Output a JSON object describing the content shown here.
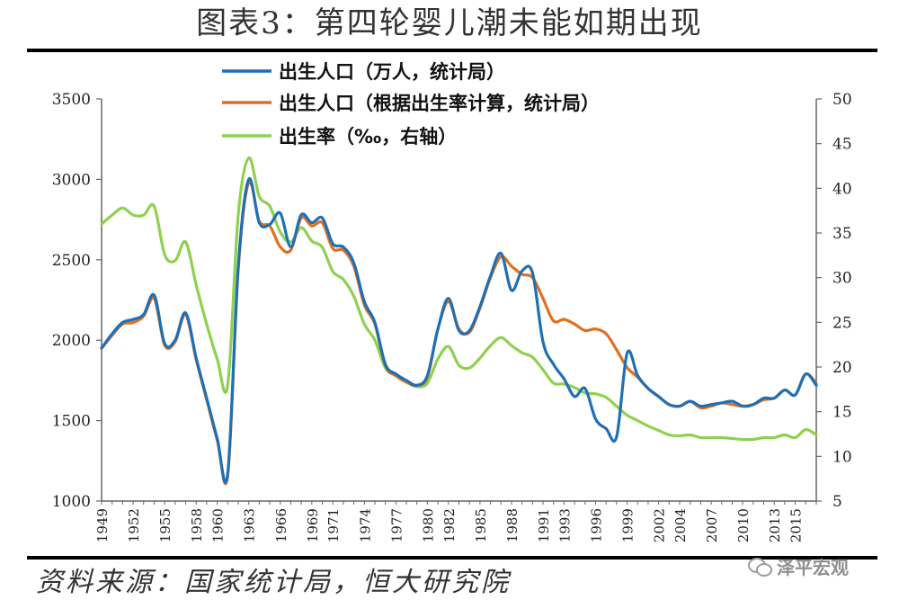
{
  "page": {
    "title": "图表3：第四轮婴儿潮未能如期出现",
    "source": "资料来源：国家统计局，恒大研究院",
    "watermark": "泽平宏观",
    "watermark_icon": "wechat-icon"
  },
  "chart_data": {
    "type": "line",
    "title": "",
    "legend_placement": "top",
    "grid": false,
    "y_left": {
      "min": 1000,
      "max": 3500,
      "ticks": [
        1000,
        1500,
        2000,
        2500,
        3000,
        3500
      ]
    },
    "y_right": {
      "min": 5,
      "max": 50,
      "ticks": [
        5,
        10,
        15,
        20,
        25,
        30,
        35,
        40,
        45,
        50
      ]
    },
    "x_range": [
      1949,
      2017
    ],
    "x_tick_labels": [
      1949,
      1952,
      1955,
      1958,
      1960,
      1963,
      1966,
      1969,
      1971,
      1974,
      1977,
      1980,
      1982,
      1985,
      1988,
      1991,
      1993,
      1996,
      1999,
      2002,
      2004,
      2007,
      2010,
      2013,
      2015
    ],
    "series": [
      {
        "name": "出生人口（万人，统计局）",
        "axis": "left",
        "color": "#1f6fb5",
        "points": [
          [
            1949,
            1950
          ],
          [
            1950,
            2040
          ],
          [
            1951,
            2110
          ],
          [
            1952,
            2130
          ],
          [
            1953,
            2160
          ],
          [
            1954,
            2280
          ],
          [
            1955,
            1980
          ],
          [
            1956,
            2000
          ],
          [
            1957,
            2170
          ],
          [
            1958,
            1890
          ],
          [
            1959,
            1640
          ],
          [
            1960,
            1390
          ],
          [
            1961,
            1170
          ],
          [
            1962,
            2460
          ],
          [
            1963,
            3000
          ],
          [
            1964,
            2730
          ],
          [
            1965,
            2720
          ],
          [
            1966,
            2790
          ],
          [
            1967,
            2580
          ],
          [
            1968,
            2780
          ],
          [
            1969,
            2730
          ],
          [
            1970,
            2760
          ],
          [
            1971,
            2600
          ],
          [
            1972,
            2580
          ],
          [
            1973,
            2480
          ],
          [
            1974,
            2240
          ],
          [
            1975,
            2110
          ],
          [
            1976,
            1850
          ],
          [
            1977,
            1790
          ],
          [
            1978,
            1750
          ],
          [
            1979,
            1720
          ],
          [
            1980,
            1780
          ],
          [
            1981,
            2070
          ],
          [
            1982,
            2260
          ],
          [
            1983,
            2060
          ],
          [
            1984,
            2060
          ],
          [
            1985,
            2210
          ],
          [
            1986,
            2400
          ],
          [
            1987,
            2540
          ],
          [
            1988,
            2310
          ],
          [
            1989,
            2430
          ],
          [
            1990,
            2420
          ],
          [
            1991,
            1990
          ],
          [
            1992,
            1850
          ],
          [
            1993,
            1760
          ],
          [
            1994,
            1650
          ],
          [
            1995,
            1700
          ],
          [
            1996,
            1510
          ],
          [
            1997,
            1450
          ],
          [
            1998,
            1400
          ],
          [
            1999,
            1920
          ],
          [
            2000,
            1780
          ],
          [
            2001,
            1700
          ],
          [
            2002,
            1650
          ],
          [
            2003,
            1600
          ],
          [
            2004,
            1590
          ],
          [
            2005,
            1620
          ],
          [
            2006,
            1590
          ],
          [
            2007,
            1600
          ],
          [
            2008,
            1610
          ],
          [
            2009,
            1620
          ],
          [
            2010,
            1590
          ],
          [
            2011,
            1600
          ],
          [
            2012,
            1640
          ],
          [
            2013,
            1640
          ],
          [
            2014,
            1690
          ],
          [
            2015,
            1660
          ],
          [
            2016,
            1790
          ],
          [
            2017,
            1720
          ]
        ]
      },
      {
        "name": "出生人口（根据出生率计算，统计局）",
        "axis": "left",
        "color": "#e07020",
        "points": [
          [
            1949,
            1950
          ],
          [
            1950,
            2030
          ],
          [
            1951,
            2100
          ],
          [
            1952,
            2110
          ],
          [
            1953,
            2150
          ],
          [
            1954,
            2260
          ],
          [
            1955,
            1970
          ],
          [
            1956,
            1990
          ],
          [
            1957,
            2160
          ],
          [
            1958,
            1880
          ],
          [
            1959,
            1630
          ],
          [
            1960,
            1380
          ],
          [
            1961,
            1160
          ],
          [
            1962,
            2440
          ],
          [
            1963,
            2980
          ],
          [
            1964,
            2740
          ],
          [
            1965,
            2710
          ],
          [
            1966,
            2580
          ],
          [
            1967,
            2560
          ],
          [
            1968,
            2760
          ],
          [
            1969,
            2710
          ],
          [
            1970,
            2730
          ],
          [
            1971,
            2570
          ],
          [
            1972,
            2560
          ],
          [
            1973,
            2460
          ],
          [
            1974,
            2220
          ],
          [
            1975,
            2100
          ],
          [
            1976,
            1840
          ],
          [
            1977,
            1780
          ],
          [
            1978,
            1740
          ],
          [
            1979,
            1720
          ],
          [
            1980,
            1770
          ],
          [
            1981,
            2070
          ],
          [
            1982,
            2240
          ],
          [
            1983,
            2070
          ],
          [
            1984,
            2050
          ],
          [
            1985,
            2200
          ],
          [
            1986,
            2390
          ],
          [
            1987,
            2520
          ],
          [
            1988,
            2460
          ],
          [
            1989,
            2410
          ],
          [
            1990,
            2390
          ],
          [
            1991,
            2260
          ],
          [
            1992,
            2120
          ],
          [
            1993,
            2130
          ],
          [
            1994,
            2100
          ],
          [
            1995,
            2060
          ],
          [
            1996,
            2070
          ],
          [
            1997,
            2040
          ],
          [
            1998,
            1940
          ],
          [
            1999,
            1830
          ],
          [
            2000,
            1770
          ],
          [
            2001,
            1700
          ],
          [
            2002,
            1650
          ],
          [
            2003,
            1600
          ],
          [
            2004,
            1590
          ],
          [
            2005,
            1620
          ],
          [
            2006,
            1580
          ],
          [
            2007,
            1590
          ],
          [
            2008,
            1610
          ],
          [
            2009,
            1600
          ],
          [
            2010,
            1590
          ],
          [
            2011,
            1600
          ],
          [
            2012,
            1630
          ],
          [
            2013,
            1640
          ],
          [
            2014,
            1690
          ],
          [
            2015,
            1660
          ],
          [
            2016,
            1790
          ],
          [
            2017,
            1730
          ]
        ]
      },
      {
        "name": "出生率（‰，右轴）",
        "axis": "right",
        "color": "#8fd14f",
        "points": [
          [
            1949,
            36
          ],
          [
            1950,
            37
          ],
          [
            1951,
            37.8
          ],
          [
            1952,
            37
          ],
          [
            1953,
            37
          ],
          [
            1954,
            38
          ],
          [
            1955,
            32.6
          ],
          [
            1956,
            31.9
          ],
          [
            1957,
            34
          ],
          [
            1958,
            29.2
          ],
          [
            1959,
            24.8
          ],
          [
            1960,
            20.9
          ],
          [
            1961,
            18
          ],
          [
            1962,
            37
          ],
          [
            1963,
            43.4
          ],
          [
            1964,
            39.1
          ],
          [
            1965,
            38
          ],
          [
            1966,
            35.1
          ],
          [
            1967,
            34
          ],
          [
            1968,
            35.6
          ],
          [
            1969,
            34.1
          ],
          [
            1970,
            33.4
          ],
          [
            1971,
            30.7
          ],
          [
            1972,
            29.8
          ],
          [
            1973,
            27.9
          ],
          [
            1974,
            24.8
          ],
          [
            1975,
            23
          ],
          [
            1976,
            19.9
          ],
          [
            1977,
            19
          ],
          [
            1978,
            18.3
          ],
          [
            1979,
            17.8
          ],
          [
            1980,
            18.2
          ],
          [
            1981,
            20.9
          ],
          [
            1982,
            22.3
          ],
          [
            1983,
            20.2
          ],
          [
            1984,
            19.9
          ],
          [
            1985,
            21
          ],
          [
            1986,
            22.4
          ],
          [
            1987,
            23.3
          ],
          [
            1988,
            22.4
          ],
          [
            1989,
            21.6
          ],
          [
            1990,
            21.1
          ],
          [
            1991,
            19.7
          ],
          [
            1992,
            18.2
          ],
          [
            1993,
            18.1
          ],
          [
            1994,
            17.7
          ],
          [
            1995,
            17.1
          ],
          [
            1996,
            17
          ],
          [
            1997,
            16.6
          ],
          [
            1998,
            15.6
          ],
          [
            1999,
            14.6
          ],
          [
            2000,
            14
          ],
          [
            2001,
            13.4
          ],
          [
            2002,
            12.9
          ],
          [
            2003,
            12.4
          ],
          [
            2004,
            12.3
          ],
          [
            2005,
            12.4
          ],
          [
            2006,
            12.1
          ],
          [
            2007,
            12.1
          ],
          [
            2008,
            12.1
          ],
          [
            2009,
            12
          ],
          [
            2010,
            11.9
          ],
          [
            2011,
            11.9
          ],
          [
            2012,
            12.1
          ],
          [
            2013,
            12.1
          ],
          [
            2014,
            12.4
          ],
          [
            2015,
            12.1
          ],
          [
            2016,
            13
          ],
          [
            2017,
            12.4
          ]
        ]
      }
    ]
  }
}
